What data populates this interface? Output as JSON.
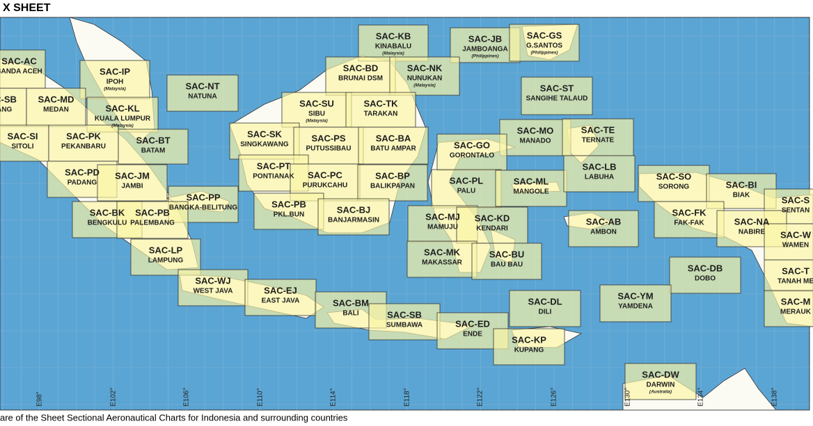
{
  "header": {
    "title": "X SHEET"
  },
  "footer": {
    "caption": "are of the Sheet Sectional Aeronautical Charts for Indonesia and surrounding countries"
  },
  "longitudes": [
    "E98°",
    "E102°",
    "E106°",
    "E110°",
    "E114°",
    "E118°",
    "E122°",
    "E126°",
    "E130°",
    "E134°",
    "E138°"
  ],
  "sheets": [
    {
      "code": "SAC-AC",
      "name": "BANDA ACEH"
    },
    {
      "code": "SAC-IP",
      "name": "IPOH",
      "note": "(Malaysia)"
    },
    {
      "code": "SAC-NT",
      "name": "NATUNA"
    },
    {
      "code": "SAC-KB",
      "name": "KINABALU",
      "note": "(Malaysia)"
    },
    {
      "code": "SAC-JB",
      "name": "JAMBOANGA",
      "note": "(Philippines)"
    },
    {
      "code": "SAC-GS",
      "name": "G.SANTOS",
      "note": "(Philippines)"
    },
    {
      "code": "SAC-BD",
      "name": "BRUNAI DSM"
    },
    {
      "code": "SAC-NK",
      "name": "NUNUKAN",
      "note": "(Malaysia)"
    },
    {
      "code": "SAC-SB",
      "name": "ABANG"
    },
    {
      "code": "SAC-MD",
      "name": "MEDAN"
    },
    {
      "code": "SAC-KL",
      "name": "KUALA LUMPUR",
      "note": "(Malaysia)"
    },
    {
      "code": "SAC-ST",
      "name": "SANGIHE TALAUD"
    },
    {
      "code": "SAC-SU",
      "name": "SIBU",
      "note": "(Malaysia)"
    },
    {
      "code": "SAC-TK",
      "name": "TARAKAN"
    },
    {
      "code": "SAC-SI",
      "name": "SITOLI"
    },
    {
      "code": "SAC-PK",
      "name": "PEKANBARU"
    },
    {
      "code": "SAC-BT",
      "name": "BATAM"
    },
    {
      "code": "SAC-SK",
      "name": "SINGKAWANG"
    },
    {
      "code": "SAC-PS",
      "name": "PUTUSSIBAU"
    },
    {
      "code": "SAC-BA",
      "name": "BATU AMPAR"
    },
    {
      "code": "SAC-MO",
      "name": "MANADO"
    },
    {
      "code": "SAC-TE",
      "name": "TERNATE"
    },
    {
      "code": "SAC-GO",
      "name": "GORONTALO"
    },
    {
      "code": "SAC-PD",
      "name": "PADANG"
    },
    {
      "code": "SAC-JM",
      "name": "JAMBI"
    },
    {
      "code": "SAC-PT",
      "name": "PONTIANAK"
    },
    {
      "code": "SAC-PC",
      "name": "PURUKCAHU"
    },
    {
      "code": "SAC-BP",
      "name": "BALIKPAPAN"
    },
    {
      "code": "SAC-PL",
      "name": "PALU"
    },
    {
      "code": "SAC-ML",
      "name": "MANGOLE"
    },
    {
      "code": "SAC-LB",
      "name": "LABUHA"
    },
    {
      "code": "SAC-SO",
      "name": "SORONG"
    },
    {
      "code": "SAC-BI",
      "name": "BIAK"
    },
    {
      "code": "SAC-S",
      "name": "SENTAN"
    },
    {
      "code": "SAC-PP",
      "name": "BANGKA-BELITUNG"
    },
    {
      "code": "SAC-PB",
      "name": "PKL.BUN"
    },
    {
      "code": "SAC-BJ",
      "name": "BANJARMASIN"
    },
    {
      "code": "SAC-BK",
      "name": "BENGKULU"
    },
    {
      "code": "SAC-PB",
      "name": "PALEMBANG"
    },
    {
      "code": "SAC-MJ",
      "name": "MAMUJU"
    },
    {
      "code": "SAC-KD",
      "name": "KENDARI"
    },
    {
      "code": "SAC-FK",
      "name": "FAK-FAK"
    },
    {
      "code": "SAC-AB",
      "name": "AMBON"
    },
    {
      "code": "SAC-NA",
      "name": "NABIRE"
    },
    {
      "code": "SAC-W",
      "name": "WAMEN"
    },
    {
      "code": "SAC-MK",
      "name": "MAKASSAR"
    },
    {
      "code": "SAC-BU",
      "name": "BAU BAU"
    },
    {
      "code": "SAC-LP",
      "name": "LAMPUNG"
    },
    {
      "code": "SAC-DB",
      "name": "DOBO"
    },
    {
      "code": "SAC-T",
      "name": "TANAH ME"
    },
    {
      "code": "SAC-WJ",
      "name": "WEST JAVA"
    },
    {
      "code": "SAC-EJ",
      "name": "EAST JAVA"
    },
    {
      "code": "SAC-YM",
      "name": "YAMDENA"
    },
    {
      "code": "SAC-M",
      "name": "MERAUK"
    },
    {
      "code": "SAC-BM",
      "name": "BALI"
    },
    {
      "code": "SAC-DL",
      "name": "DILI"
    },
    {
      "code": "SAC-SB",
      "name": "SUMBAWA"
    },
    {
      "code": "SAC-ED",
      "name": "ENDE"
    },
    {
      "code": "SAC-KP",
      "name": "KUPANG"
    },
    {
      "code": "SAC-DW",
      "name": "DARWIN",
      "note": "(Australia)"
    }
  ]
}
